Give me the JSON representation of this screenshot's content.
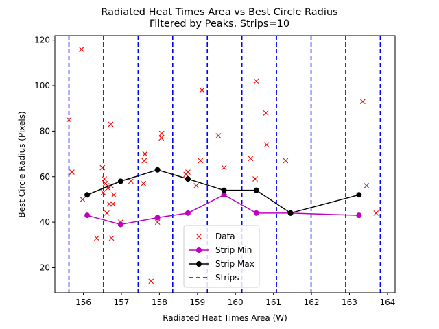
{
  "chart_data": {
    "type": "scatter",
    "title": "Radiated Heat Times Area vs Best Circle Radius",
    "subtitle": "Filtered by Peaks, Strips=10",
    "xlabel": "Radiated Heat Times Area (W)",
    "ylabel": "Best Circle Radius (Pixels)",
    "xlim": [
      155.25,
      164.2
    ],
    "ylim": [
      9,
      122
    ],
    "xticks": [
      156,
      157,
      158,
      159,
      160,
      161,
      162,
      163,
      164
    ],
    "yticks": [
      20,
      40,
      60,
      80,
      100,
      120
    ],
    "grid": false,
    "legend_position": "bottom-center",
    "colors": {
      "data": "#ff0000",
      "strip_min": "#bf00bf",
      "strip_max": "#000000",
      "strips": "#0000ff"
    },
    "series": [
      {
        "name": "Data",
        "style": "x-marker",
        "points": [
          [
            155.62,
            85
          ],
          [
            155.7,
            62
          ],
          [
            155.95,
            116
          ],
          [
            155.98,
            50
          ],
          [
            156.35,
            33
          ],
          [
            156.5,
            64
          ],
          [
            156.52,
            53
          ],
          [
            156.55,
            59
          ],
          [
            156.58,
            57
          ],
          [
            156.62,
            44
          ],
          [
            156.65,
            55
          ],
          [
            156.68,
            48
          ],
          [
            156.72,
            83
          ],
          [
            156.73,
            56
          ],
          [
            156.74,
            33
          ],
          [
            156.78,
            48
          ],
          [
            156.8,
            52
          ],
          [
            156.98,
            40
          ],
          [
            157.25,
            58
          ],
          [
            157.58,
            57
          ],
          [
            157.6,
            67
          ],
          [
            157.62,
            70
          ],
          [
            157.78,
            14
          ],
          [
            157.95,
            40
          ],
          [
            158.05,
            77
          ],
          [
            158.06,
            79
          ],
          [
            158.7,
            61
          ],
          [
            158.75,
            62
          ],
          [
            158.97,
            56
          ],
          [
            159.08,
            67
          ],
          [
            159.12,
            98
          ],
          [
            159.55,
            78
          ],
          [
            159.7,
            64
          ],
          [
            160.4,
            68
          ],
          [
            160.52,
            59
          ],
          [
            160.55,
            102
          ],
          [
            160.8,
            88
          ],
          [
            160.82,
            74
          ],
          [
            161.32,
            67
          ],
          [
            163.35,
            93
          ],
          [
            163.45,
            56
          ],
          [
            163.7,
            44
          ]
        ]
      },
      {
        "name": "Strip Min",
        "style": "line-circle",
        "points": [
          [
            156.1,
            43
          ],
          [
            156.98,
            39
          ],
          [
            157.95,
            42
          ],
          [
            158.75,
            44
          ],
          [
            159.7,
            52
          ],
          [
            160.55,
            44
          ],
          [
            161.45,
            44
          ],
          [
            163.25,
            43
          ]
        ]
      },
      {
        "name": "Strip Max",
        "style": "line-circle",
        "points": [
          [
            156.1,
            52
          ],
          [
            156.98,
            58
          ],
          [
            157.95,
            63
          ],
          [
            158.75,
            59
          ],
          [
            159.7,
            54
          ],
          [
            160.55,
            54
          ],
          [
            161.45,
            44
          ],
          [
            163.25,
            52
          ]
        ]
      }
    ],
    "strips": {
      "name": "Strips",
      "style": "dashed-vertical",
      "x": [
        155.62,
        156.53,
        157.44,
        158.35,
        159.26,
        160.17,
        161.08,
        161.99,
        162.9,
        163.81
      ]
    },
    "legend": [
      {
        "label": "Data",
        "key": "data"
      },
      {
        "label": "Strip Min",
        "key": "strip_min"
      },
      {
        "label": "Strip Max",
        "key": "strip_max"
      },
      {
        "label": "Strips",
        "key": "strips"
      }
    ]
  }
}
